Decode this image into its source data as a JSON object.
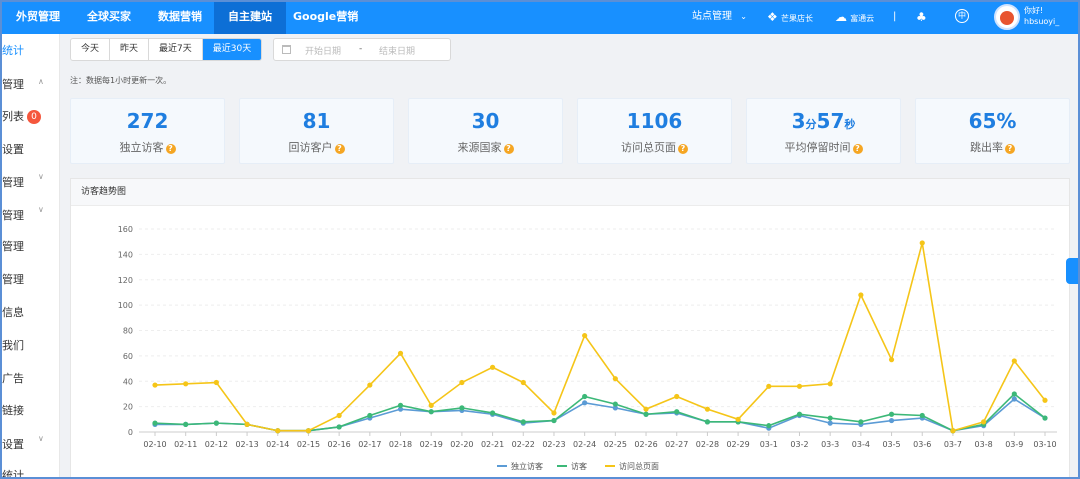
{
  "nav": {
    "items": [
      {
        "label": "外贸管理",
        "active": false
      },
      {
        "label": "全球买家",
        "active": false
      },
      {
        "label": "数据营销",
        "active": false
      },
      {
        "label": "自主建站",
        "active": true
      },
      {
        "label": "Google营销",
        "active": false
      }
    ],
    "site_manage": "站点管理",
    "mango": "芒果店长",
    "cloud": "富通云",
    "separator": "|",
    "lang": "中",
    "user_line1": "你好!",
    "user_line2": "hbsuoyi_"
  },
  "sidebar": {
    "items": [
      {
        "label": "统计",
        "active": true
      },
      {
        "label": "管理",
        "arrow": "up"
      },
      {
        "label": "列表",
        "badge": "0"
      },
      {
        "label": "设置"
      },
      {
        "label": "管理",
        "arrow": "down"
      },
      {
        "label": "管理",
        "arrow": "down"
      },
      {
        "label": "管理"
      },
      {
        "label": "管理"
      },
      {
        "label": "信息"
      },
      {
        "label": "我们"
      },
      {
        "label": "广告"
      },
      {
        "label": "链接"
      },
      {
        "label": "设置",
        "arrow": "down"
      },
      {
        "label": "统计"
      }
    ]
  },
  "filters": {
    "buttons": [
      "今天",
      "昨天",
      "最近7天",
      "最近30天"
    ],
    "active_index": 3,
    "start_placeholder": "开始日期",
    "range_sep": "-",
    "end_placeholder": "结束日期"
  },
  "note": "注：数据每1小时更新一次。",
  "stats": [
    {
      "value": "272",
      "label": "独立访客"
    },
    {
      "value": "81",
      "label": "回访客户"
    },
    {
      "value": "30",
      "label": "来源国家"
    },
    {
      "value": "1106",
      "label": "访问总页面"
    },
    {
      "value_min": "3",
      "unit_min": "分",
      "value_sec": "57",
      "unit_sec": "秒",
      "label": "平均停留时间"
    },
    {
      "value": "65%",
      "label": "跳出率"
    }
  ],
  "chart_title": "访客趋势图",
  "chart_data": {
    "type": "line",
    "title": "访客趋势图",
    "categories": [
      "02-10",
      "02-11",
      "02-12",
      "02-13",
      "02-14",
      "02-15",
      "02-16",
      "02-17",
      "02-18",
      "02-19",
      "02-20",
      "02-21",
      "02-22",
      "02-23",
      "02-24",
      "02-25",
      "02-26",
      "02-27",
      "02-28",
      "02-29",
      "03-1",
      "03-2",
      "03-3",
      "03-4",
      "03-5",
      "03-6",
      "03-7",
      "03-8",
      "03-9",
      "03-10"
    ],
    "ylim": [
      0,
      160
    ],
    "yticks": [
      0,
      20,
      40,
      60,
      80,
      100,
      120,
      140,
      160
    ],
    "grid": true,
    "legend_position": "bottom-center",
    "series": [
      {
        "name": "独立访客",
        "color": "#5b9bd5",
        "values": [
          6,
          6,
          7,
          6,
          1,
          1,
          4,
          11,
          18,
          16,
          17,
          14,
          7,
          9,
          23,
          19,
          14,
          15,
          8,
          8,
          3,
          13,
          7,
          6,
          9,
          11,
          1,
          5,
          26,
          11
        ]
      },
      {
        "name": "访客",
        "color": "#3cb878",
        "values": [
          7,
          6,
          7,
          6,
          1,
          1,
          4,
          13,
          21,
          16,
          19,
          15,
          8,
          9,
          28,
          22,
          14,
          16,
          8,
          8,
          5,
          14,
          11,
          8,
          14,
          13,
          1,
          6,
          30,
          11
        ]
      },
      {
        "name": "访问总页面",
        "color": "#f5c518",
        "values": [
          37,
          38,
          39,
          6,
          1,
          1,
          13,
          37,
          62,
          21,
          39,
          51,
          39,
          15,
          76,
          42,
          18,
          28,
          18,
          10,
          36,
          36,
          38,
          108,
          57,
          149,
          1,
          8,
          56,
          25
        ]
      }
    ]
  }
}
